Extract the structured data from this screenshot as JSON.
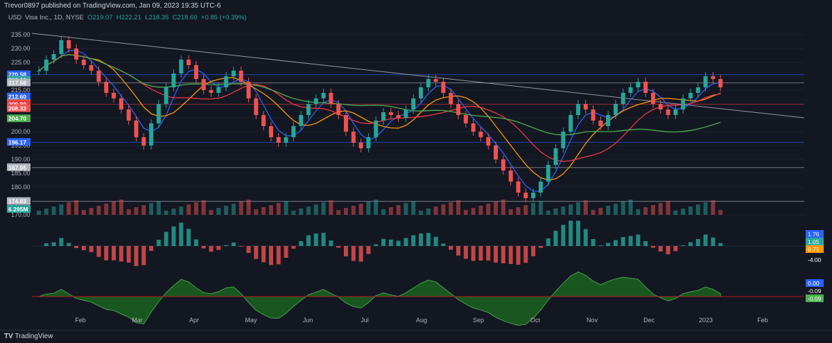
{
  "header": {
    "publisher": "Trevor0897 published on TradingView.com, Jan 09, 2023 19:35 UTC-6"
  },
  "legend": {
    "symbol": "Visa Inc., 1D, NYSE",
    "open": "O219.07",
    "high": "H222.21",
    "low": "L218.35",
    "close": "C218.60",
    "change": "+0.85 (+0.39%)"
  },
  "currency": "USD",
  "footer": {
    "brand": "TradingView"
  },
  "colors": {
    "bg": "#131722",
    "up": "#26a69a",
    "down": "#ef5350",
    "ma_blue": "#2962ff",
    "ma_orange": "#ff9800",
    "ma_red": "#f23645",
    "ma_green": "#4caf50"
  },
  "chart_data": {
    "type": "line",
    "xlabels": [
      "Feb",
      "Mar",
      "Apr",
      "May",
      "Jun",
      "Jul",
      "Aug",
      "Sep",
      "Oct",
      "Nov",
      "Dec",
      "2023",
      "Feb"
    ],
    "yticks": [
      235,
      230,
      225,
      220,
      215,
      210,
      205,
      200,
      195,
      190,
      185,
      180,
      175,
      170
    ],
    "price_tags": [
      {
        "label": "220.58",
        "value": 220.58,
        "color": "#2962ff"
      },
      {
        "label": "218.60",
        "value": 218.6,
        "color": "#26a69a"
      },
      {
        "label": "217.58",
        "value": 217.58,
        "color": "#b2b5be"
      },
      {
        "label": "212.60",
        "value": 212.6,
        "color": "#2962ff"
      },
      {
        "label": "210.11",
        "value": 210.11,
        "color": "#ff9800"
      },
      {
        "label": "209.90",
        "value": 209.9,
        "color": "#f23645"
      },
      {
        "label": "208.33",
        "value": 208.33,
        "color": "#ef5350"
      },
      {
        "label": "204.70",
        "value": 204.7,
        "color": "#4caf50"
      },
      {
        "label": "196.17",
        "value": 196.17,
        "color": "#2962ff"
      },
      {
        "label": "187.05",
        "value": 187.05,
        "color": "#b2b5be"
      },
      {
        "label": "174.83",
        "value": 174.83,
        "color": "#b2b5be"
      },
      {
        "label": "6.295M",
        "value": 172.0,
        "color": "#26a69a"
      }
    ],
    "close_series": [
      222,
      226,
      228,
      233,
      230,
      226,
      224,
      222,
      218,
      214,
      212,
      208,
      204,
      198,
      195,
      203,
      210,
      216,
      221,
      226,
      224,
      219,
      215,
      214,
      216,
      220,
      222,
      218,
      212,
      206,
      202,
      198,
      196,
      198,
      202,
      206,
      210,
      212,
      214,
      210,
      206,
      200,
      196,
      194,
      198,
      204,
      207,
      206,
      205,
      208,
      212,
      216,
      219,
      218,
      214,
      210,
      206,
      203,
      200,
      198,
      195,
      190,
      186,
      182,
      178,
      176,
      178,
      182,
      188,
      194,
      200,
      206,
      210,
      208,
      204,
      202,
      206,
      210,
      214,
      216,
      218,
      214,
      210,
      208,
      206,
      208,
      212,
      214,
      216,
      220,
      219,
      216
    ],
    "macd_ticks": [
      {
        "label": "1.76",
        "color": "#2962ff"
      },
      {
        "label": "1.05",
        "color": "#26a69a"
      },
      {
        "label": "0.71",
        "color": "#ff9800"
      },
      {
        "label": "-4.00",
        "color": ""
      }
    ],
    "osc_ticks": [
      {
        "label": "0.00",
        "color": "#2962ff"
      },
      {
        "label": "-0.09",
        "color": ""
      },
      {
        "label": "-0.09",
        "color": "#4caf50"
      }
    ]
  }
}
